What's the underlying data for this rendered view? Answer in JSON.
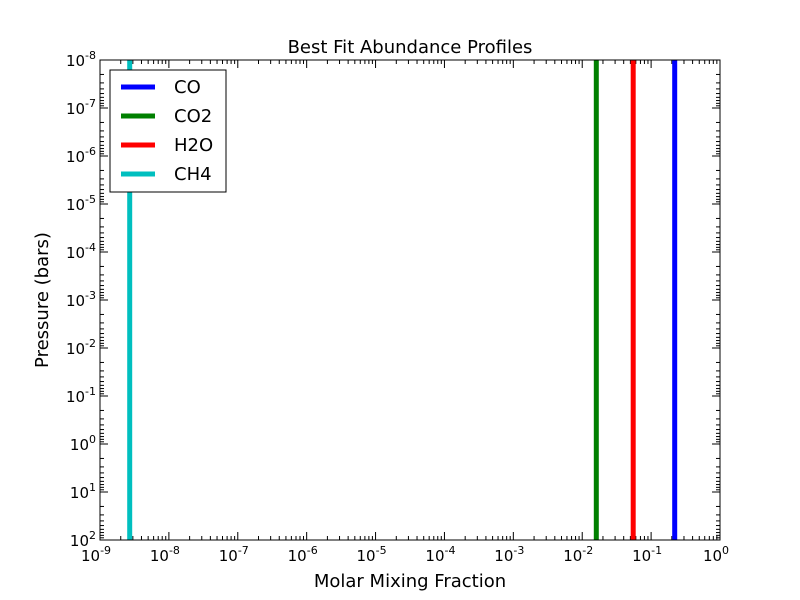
{
  "chart_data": {
    "type": "line",
    "title": "Best Fit Abundance Profiles",
    "xlabel": "Molar Mixing Fraction",
    "ylabel": "Pressure (bars)",
    "xscale": "log",
    "yscale": "log",
    "y_inverted": true,
    "xlim": [
      1e-09,
      1
    ],
    "ylim": [
      100,
      1e-08
    ],
    "x_ticks": [
      {
        "base": "10",
        "exp": "-9",
        "value": 1e-09
      },
      {
        "base": "10",
        "exp": "-8",
        "value": 1e-08
      },
      {
        "base": "10",
        "exp": "-7",
        "value": 1e-07
      },
      {
        "base": "10",
        "exp": "-6",
        "value": 1e-06
      },
      {
        "base": "10",
        "exp": "-5",
        "value": 1e-05
      },
      {
        "base": "10",
        "exp": "-4",
        "value": 0.0001
      },
      {
        "base": "10",
        "exp": "-3",
        "value": 0.001
      },
      {
        "base": "10",
        "exp": "-2",
        "value": 0.01
      },
      {
        "base": "10",
        "exp": "-1",
        "value": 0.1
      },
      {
        "base": "10",
        "exp": "0",
        "value": 1
      }
    ],
    "y_ticks": [
      {
        "base": "10",
        "exp": "-8",
        "value": 1e-08
      },
      {
        "base": "10",
        "exp": "-7",
        "value": 1e-07
      },
      {
        "base": "10",
        "exp": "-6",
        "value": 1e-06
      },
      {
        "base": "10",
        "exp": "-5",
        "value": 1e-05
      },
      {
        "base": "10",
        "exp": "-4",
        "value": 0.0001
      },
      {
        "base": "10",
        "exp": "-3",
        "value": 0.001
      },
      {
        "base": "10",
        "exp": "-2",
        "value": 0.01
      },
      {
        "base": "10",
        "exp": "-1",
        "value": 0.1
      },
      {
        "base": "10",
        "exp": "0",
        "value": 1
      },
      {
        "base": "10",
        "exp": "1",
        "value": 10
      },
      {
        "base": "10",
        "exp": "2",
        "value": 100
      }
    ],
    "series": [
      {
        "name": "CO",
        "color": "#0000ff",
        "x": [
          0.22,
          0.22
        ],
        "y": [
          1e-08,
          100
        ]
      },
      {
        "name": "CO2",
        "color": "#008000",
        "x": [
          0.016,
          0.016
        ],
        "y": [
          1e-08,
          100
        ]
      },
      {
        "name": "H2O",
        "color": "#ff0000",
        "x": [
          0.055,
          0.055
        ],
        "y": [
          1e-08,
          100
        ]
      },
      {
        "name": "CH4",
        "color": "#00bfbf",
        "x": [
          2.7e-09,
          2.7e-09
        ],
        "y": [
          1e-08,
          100
        ]
      }
    ],
    "legend": {
      "position": "top-left"
    },
    "grid": false
  }
}
